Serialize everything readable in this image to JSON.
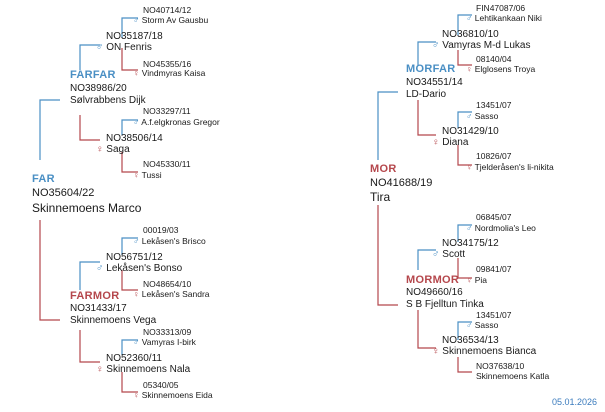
{
  "title_partial": "",
  "far": {
    "role": "FAR",
    "reg": "NO35604/22",
    "name": "Skinnemoens Marco",
    "farfar": {
      "role": "FARFAR",
      "reg": "NO38986/20",
      "name": "Sølvrabbens Dijk",
      "father": {
        "reg": "NO35187/18",
        "name": "ON Fenris",
        "father": {
          "reg": "NO40714/12",
          "name": "Storm Av Gausbu"
        },
        "mother": {
          "reg": "NO45355/16",
          "name": "Vindmyras Kaisa"
        }
      },
      "mother": {
        "reg": "NO38506/14",
        "name": "Saga",
        "father": {
          "reg": "NO33297/11",
          "name": "A.f.elgkronas Gregor"
        },
        "mother": {
          "reg": "NO45330/11",
          "name": "Tussi"
        }
      }
    },
    "farmor": {
      "role": "FARMOR",
      "reg": "NO31433/17",
      "name": "Skinnemoens Vega",
      "father": {
        "reg": "NO56751/12",
        "name": "Lekåsen's Bonso",
        "father": {
          "reg": "00019/03",
          "name": "Lekåsen's Brisco"
        },
        "mother": {
          "reg": "NO48654/10",
          "name": "Lekåsen's Sandra"
        }
      },
      "mother": {
        "reg": "NO52360/11",
        "name": "Skinnemoens Nala",
        "father": {
          "reg": "NO33313/09",
          "name": "Vamyras I-birk"
        },
        "mother": {
          "reg": "05340/05",
          "name": "Skinnemoens Eida"
        }
      }
    }
  },
  "mor": {
    "role": "MOR",
    "reg": "NO41688/19",
    "name": "Tira",
    "morfar": {
      "role": "MORFAR",
      "reg": "NO34551/14",
      "name": "LD-Dario",
      "father": {
        "reg": "NO36810/10",
        "name": "Vamyras M-d Lukas",
        "father": {
          "reg": "FIN47087/06",
          "name": "Lehtikankaan Niki"
        },
        "mother": {
          "reg": "08140/04",
          "name": "Elglosens Troya"
        }
      },
      "mother": {
        "reg": "NO31429/10",
        "name": "Diana",
        "father": {
          "reg": "13451/07",
          "name": "Sasso"
        },
        "mother": {
          "reg": "10826/07",
          "name": "Tjelderåsen's li-nikita"
        }
      }
    },
    "mormor": {
      "role": "MORMOR",
      "reg": "NO49660/16",
      "name": "S B Fjelltun Tinka",
      "father": {
        "reg": "NO34175/12",
        "name": "Scott",
        "father": {
          "reg": "06845/07",
          "name": "Nordmolia's Leo"
        },
        "mother": {
          "reg": "09841/07",
          "name": "Pia"
        }
      },
      "mother": {
        "reg": "NO36534/13",
        "name": "Skinnemoens Bianca",
        "father": {
          "reg": "13451/07",
          "name": "Sasso"
        },
        "mother": {
          "reg": "NO37638/10",
          "name": "Skinnemoens Katla"
        }
      }
    }
  },
  "footer": {
    "date": "05.01.2026"
  },
  "icons": {
    "male": "male-symbol-icon",
    "female": "female-symbol-icon"
  },
  "colors": {
    "male": "#4a8fc4",
    "female": "#b5474c"
  }
}
